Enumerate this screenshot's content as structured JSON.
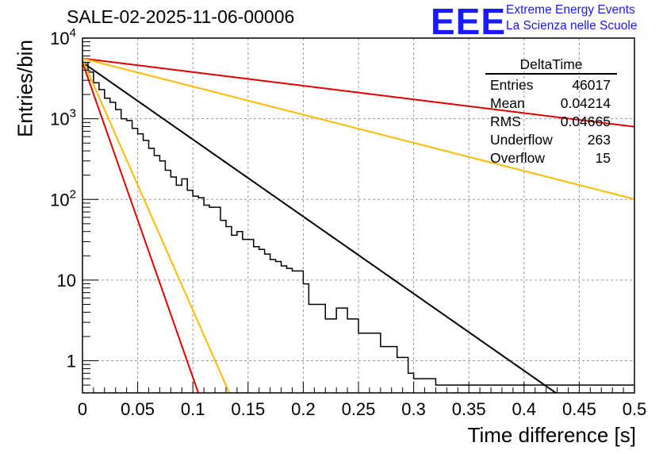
{
  "title": "SALE-02-2025-11-06-00006",
  "logo": {
    "text": "EEE",
    "line1": "Extreme Energy Events",
    "line2": "La Scienza nelle Scuole"
  },
  "stats": {
    "title": "DeltaTime",
    "rows": [
      {
        "label": "Entries",
        "value": "46017"
      },
      {
        "label": "Mean",
        "value": "0.04214"
      },
      {
        "label": "RMS",
        "value": "0.04665"
      },
      {
        "label": "Underflow",
        "value": "263"
      },
      {
        "label": "Overflow",
        "value": "15"
      }
    ]
  },
  "chart_data": {
    "type": "histogram",
    "title": "SALE-02-2025-11-06-00006",
    "xlabel": "Time difference [s]",
    "ylabel": "Entries/bin",
    "xlim": [
      0,
      0.5
    ],
    "ylim": [
      0.4,
      10000
    ],
    "yscale": "log",
    "grid": true,
    "legend": "none",
    "xticks": [
      0,
      0.05,
      0.1,
      0.15,
      0.2,
      0.25,
      0.3,
      0.35,
      0.4,
      0.45,
      0.5
    ],
    "xtick_labels": [
      "0",
      "0.05",
      "0.1",
      "0.15",
      "0.2",
      "0.25",
      "0.3",
      "0.35",
      "0.4",
      "0.45",
      "0.5"
    ],
    "yticks": [
      1,
      10,
      100,
      1000,
      10000
    ],
    "ytick_labels": [
      {
        "base": "1",
        "exp": ""
      },
      {
        "base": "10",
        "exp": ""
      },
      {
        "base": "10",
        "exp": "2"
      },
      {
        "base": "10",
        "exp": "3"
      },
      {
        "base": "10",
        "exp": "4"
      }
    ],
    "bin_width": 0.005,
    "histogram_counts": [
      5000,
      3800,
      2800,
      2300,
      1800,
      1600,
      1300,
      1000,
      950,
      760,
      650,
      540,
      430,
      350,
      300,
      230,
      190,
      150,
      180,
      130,
      110,
      105,
      85,
      80,
      80,
      55,
      46,
      36,
      40,
      32,
      32,
      26,
      24,
      21,
      18,
      17,
      15,
      14,
      13,
      13,
      9,
      5,
      5,
      5,
      3.3,
      3.3,
      4.5,
      4.5,
      3.3,
      3.3,
      2.2,
      2.2,
      2.2,
      2.2,
      1.5,
      1.5,
      1.5,
      1.1,
      1.1,
      0.7,
      0.6,
      0.6,
      0.6,
      0.6,
      0.5,
      0.5,
      0.5,
      0.5,
      0.5,
      0.5,
      0.5,
      0.5,
      0.5,
      0.5,
      0.5,
      0.5,
      0.5,
      0.5,
      0.5,
      0.5,
      0.5,
      0.5,
      0.5,
      0.5,
      0.5,
      0.5,
      0.5,
      0.5,
      0.5,
      0.5,
      0.5,
      0.5,
      0.5,
      0.5,
      0.5,
      0.5,
      0.5,
      0.5,
      0.5,
      0.5
    ],
    "series": [
      {
        "name": "exp fit",
        "color": "#000000",
        "a": 5000,
        "rate": 22.0
      },
      {
        "name": "red steep",
        "color": "#e00000",
        "a": 5000,
        "rate": 89.9
      },
      {
        "name": "orange steep",
        "color": "#ffbb00",
        "a": 5400,
        "rate": 71.5
      },
      {
        "name": "red shallow",
        "color": "#e00000",
        "a": 5600,
        "rate": 3.9
      },
      {
        "name": "orange shallow",
        "color": "#ffbb00",
        "a": 5600,
        "rate": 8.03
      }
    ]
  }
}
